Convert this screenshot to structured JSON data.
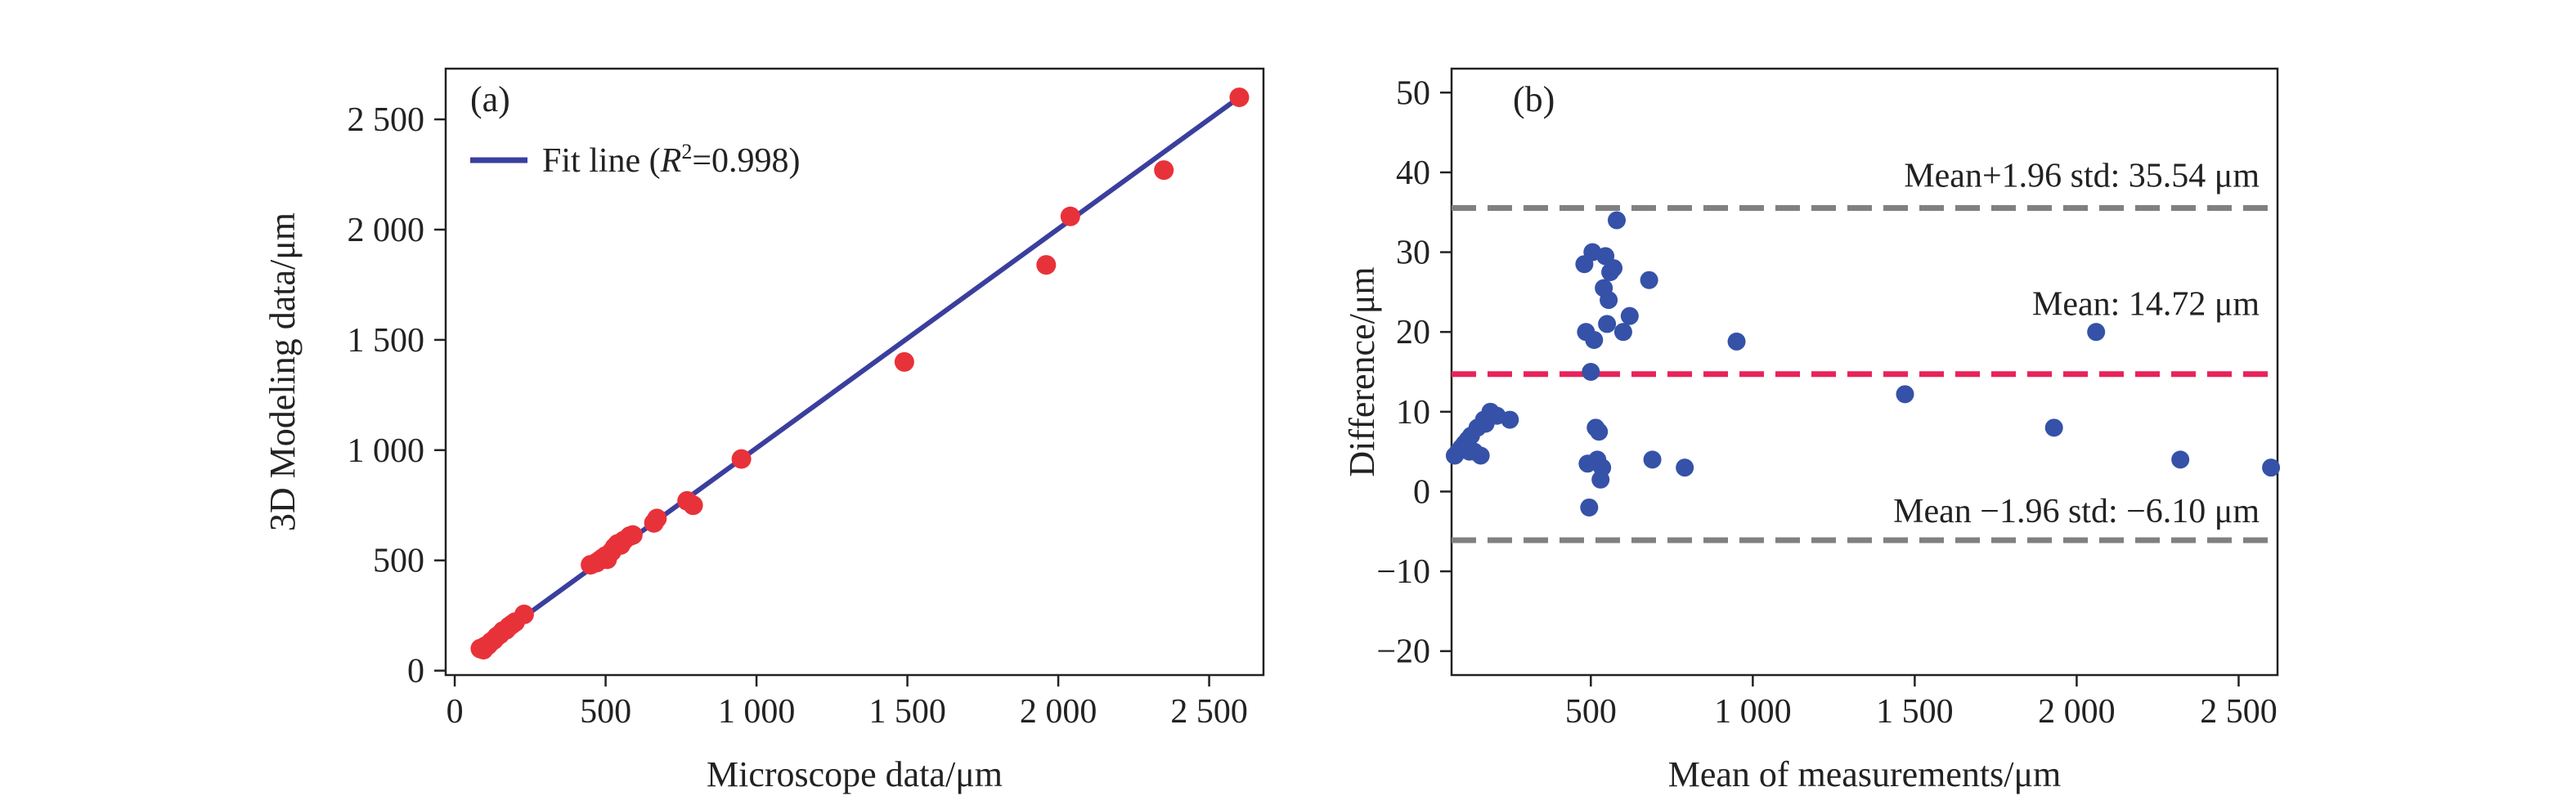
{
  "colors": {
    "points_a": "#e8323a",
    "fit_line": "#3a3f9e",
    "points_b": "#3552a8",
    "limit_lines": "#808080",
    "mean_line": "#e8235a",
    "mean_label": "#e8235a",
    "axis": "#222222"
  },
  "chart_data": [
    {
      "type": "scatter",
      "panel_label": "(a)",
      "xlabel": "Microscope data/μm",
      "ylabel": "3D Modeling data/μm",
      "xlim": [
        -30,
        2680
      ],
      "ylim": [
        -20,
        2730
      ],
      "xticks": [
        0,
        500,
        1000,
        1500,
        2000,
        2500
      ],
      "xtick_labels": [
        "0",
        "500",
        "1 000",
        "1 500",
        "2 000",
        "2 500"
      ],
      "yticks": [
        0,
        500,
        1000,
        1500,
        2000,
        2500
      ],
      "ytick_labels": [
        "0",
        "500",
        "1 000",
        "1 500",
        "2 000",
        "2 500"
      ],
      "legend": {
        "position": "top-left",
        "label_prefix": "Fit line (",
        "label_var": "R",
        "label_sup": "2",
        "label_suffix": "=0.998)"
      },
      "fit_line": {
        "x": [
          80,
          2600
        ],
        "y": [
          95,
          2600
        ]
      },
      "points": {
        "x": [
          85,
          95,
          100,
          110,
          120,
          130,
          140,
          150,
          160,
          170,
          180,
          190,
          200,
          230,
          450,
          470,
          480,
          490,
          500,
          505,
          510,
          520,
          530,
          540,
          550,
          560,
          580,
          590,
          660,
          670,
          770,
          790,
          950,
          1490,
          1960,
          2040,
          2350,
          2600
        ],
        "y": [
          100,
          95,
          110,
          115,
          130,
          140,
          155,
          165,
          180,
          185,
          200,
          210,
          220,
          255,
          480,
          490,
          500,
          510,
          520,
          505,
          525,
          540,
          560,
          575,
          570,
          590,
          610,
          615,
          670,
          690,
          770,
          750,
          960,
          1400,
          1840,
          2060,
          2270,
          2600
        ]
      }
    },
    {
      "type": "scatter",
      "panel_label": "(b)",
      "xlabel": "Mean of measurements/μm",
      "ylabel": "Difference/μm",
      "xlim": [
        70,
        2620
      ],
      "ylim": [
        -23,
        53
      ],
      "xticks": [
        500,
        1000,
        1500,
        2000,
        2500
      ],
      "xtick_labels": [
        "500",
        "1 000",
        "1 500",
        "2 000",
        "2 500"
      ],
      "yticks": [
        -20,
        -10,
        0,
        10,
        20,
        30,
        40,
        50
      ],
      "ytick_labels": [
        "−20",
        "−10",
        "0",
        "10",
        "20",
        "30",
        "40",
        "50"
      ],
      "reference_lines": [
        {
          "y": 35.54,
          "label": "Mean+1.96 std: 35.54 μm",
          "style": "limit"
        },
        {
          "y": 14.72,
          "label": "Mean: 14.72 μm",
          "style": "mean"
        },
        {
          "y": -6.1,
          "label": "Mean −1.96 std: −6.10 μm",
          "style": "limit"
        }
      ],
      "points": {
        "x": [
          80,
          90,
          100,
          110,
          120,
          125,
          130,
          140,
          150,
          160,
          170,
          175,
          190,
          210,
          250,
          480,
          485,
          490,
          495,
          500,
          505,
          510,
          515,
          520,
          525,
          530,
          535,
          540,
          545,
          550,
          555,
          560,
          570,
          580,
          600,
          620,
          680,
          690,
          790,
          950,
          1470,
          1930,
          2060,
          2320,
          2600
        ],
        "y": [
          4.5,
          5,
          5.5,
          6,
          6.5,
          5,
          7,
          5,
          8,
          4.5,
          9,
          8.5,
          10,
          9.5,
          9,
          28.5,
          20,
          3.5,
          -2,
          15,
          30,
          19,
          8,
          4,
          7.5,
          1.5,
          3,
          25.5,
          29.5,
          21,
          24,
          27.5,
          28,
          34,
          20,
          22,
          26.5,
          4,
          3,
          18.8,
          12.2,
          8,
          20,
          4,
          3
        ]
      }
    }
  ]
}
